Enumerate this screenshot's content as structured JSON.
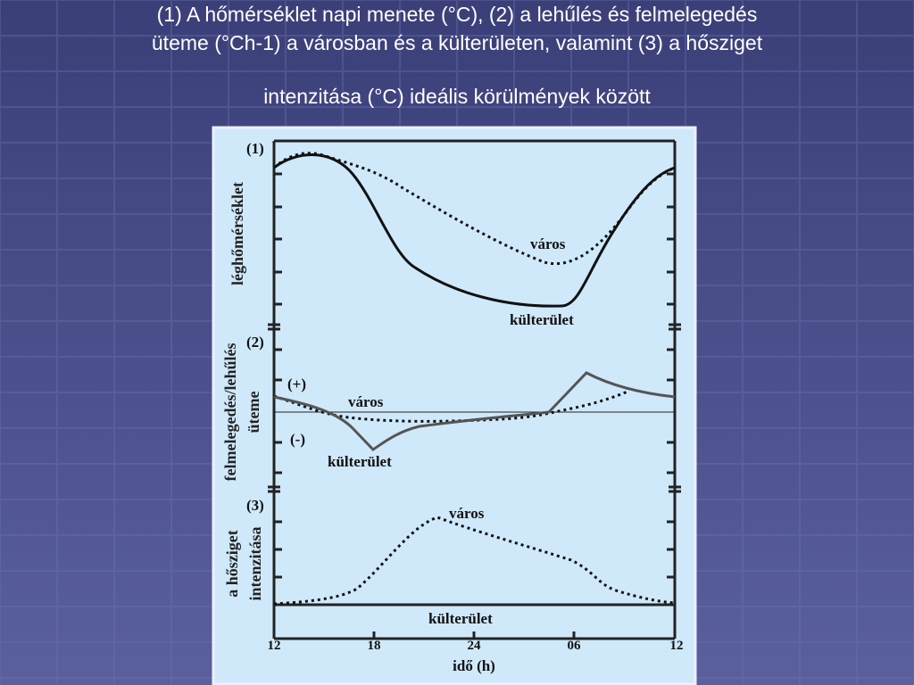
{
  "title_lines": [
    "(1) A hőmérséklet napi menete (°C), (2) a lehűlés és felmelegedés",
    "üteme (°Ch-1) a városban és a külterületen, valamint (3) a hősziget",
    "intenzitása (°C) ideális körülmények között"
  ],
  "panels": [
    {
      "label": "(1)",
      "y_label_lines": [
        "léghőmérséklet"
      ],
      "curve_labels": [
        "város",
        "külterület"
      ]
    },
    {
      "label": "(2)",
      "y_label_lines": [
        "felmelegedés/lehűlés",
        "üteme"
      ],
      "signs": [
        "(+)",
        "(-)"
      ],
      "curve_labels": [
        "város",
        "külterület"
      ]
    },
    {
      "label": "(3)",
      "y_label_lines": [
        "a hősziget",
        "intenzitása"
      ],
      "curve_labels": [
        "város",
        "külterület"
      ]
    }
  ],
  "x_axis": {
    "ticks": [
      "12",
      "18",
      "24",
      "06",
      "12"
    ],
    "label": "idő (h)"
  }
}
